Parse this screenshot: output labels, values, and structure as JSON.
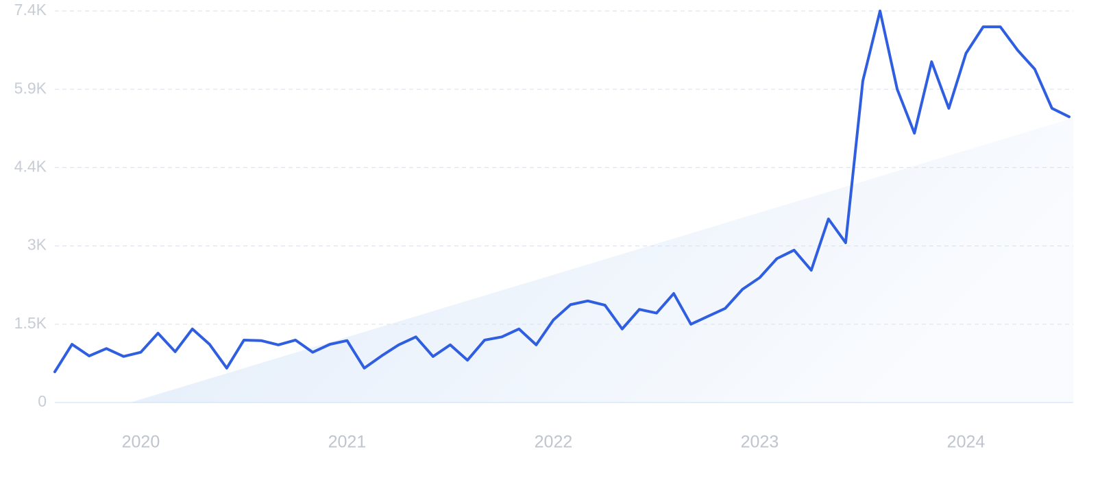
{
  "chart_data": {
    "type": "line",
    "categories": [
      null,
      null,
      null,
      null,
      null,
      "2020",
      null,
      null,
      null,
      null,
      null,
      null,
      null,
      null,
      null,
      null,
      null,
      "2021",
      null,
      null,
      null,
      null,
      null,
      null,
      null,
      null,
      null,
      null,
      null,
      "2022",
      null,
      null,
      null,
      null,
      null,
      null,
      null,
      null,
      null,
      null,
      null,
      "2023",
      null,
      null,
      null,
      null,
      null,
      null,
      null,
      null,
      null,
      null,
      null,
      "2024",
      null,
      null,
      null,
      null,
      null,
      null
    ],
    "series": [
      {
        "color": "#2f5fe0",
        "values": [
          580,
          1100,
          880,
          1020,
          870,
          950,
          1310,
          960,
          1390,
          1100,
          650,
          1180,
          1170,
          1090,
          1180,
          950,
          1100,
          1170,
          650,
          880,
          1090,
          1240,
          870,
          1090,
          800,
          1180,
          1240,
          1390,
          1090,
          1560,
          1850,
          1920,
          1840,
          1390,
          1760,
          1690,
          2060,
          1480,
          1630,
          1780,
          2140,
          2360,
          2720,
          2880,
          2500,
          3470,
          3020,
          6080,
          7400,
          5920,
          5090,
          6440,
          5560,
          6600,
          7100,
          7100,
          6660,
          6300,
          5560,
          5400
        ]
      }
    ],
    "ylim": [
      0,
      7400
    ],
    "yticks": [
      0,
      {
        "value": 1480,
        "label": "1.5K"
      },
      {
        "value": 2960,
        "label": "3K"
      },
      {
        "value": 4440,
        "label": "4.4K"
      },
      {
        "value": 5920,
        "label": "5.9K"
      },
      {
        "value": 7400,
        "label": "7.4K"
      }
    ],
    "grid": true
  }
}
